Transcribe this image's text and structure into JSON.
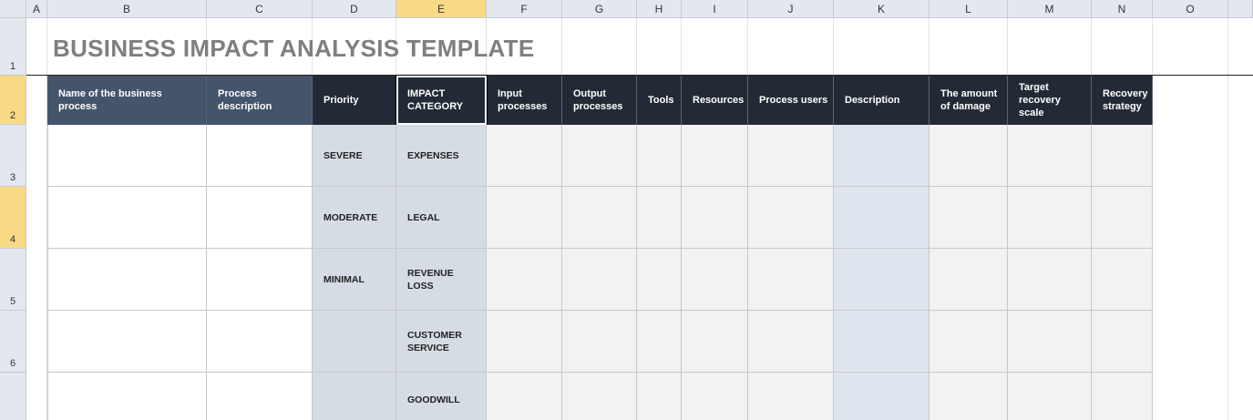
{
  "sheet": {
    "columns": [
      "A",
      "B",
      "C",
      "D",
      "E",
      "F",
      "G",
      "H",
      "I",
      "J",
      "K",
      "L",
      "M",
      "N",
      "O"
    ],
    "row_numbers": [
      "1",
      "2",
      "3",
      "4",
      "5",
      "6"
    ],
    "title": "BUSINESS IMPACT ANALYSIS TEMPLATE",
    "headers": [
      "Name of the business process",
      "Process description",
      "Priority",
      "IMPACT CATEGORY",
      "Input processes",
      "Output processes",
      "Tools",
      "Resources",
      "Process users",
      "Description",
      "The amount of damage",
      "Target recovery scale",
      "Recovery strategy"
    ],
    "rows": [
      {
        "priority": "SEVERE",
        "impact_category": "EXPENSES"
      },
      {
        "priority": "MODERATE",
        "impact_category": "LEGAL"
      },
      {
        "priority": "MINIMAL",
        "impact_category": "REVENUE LOSS"
      },
      {
        "impact_category": "CUSTOMER SERVICE"
      },
      {
        "impact_category": "GOODWILL"
      }
    ]
  }
}
